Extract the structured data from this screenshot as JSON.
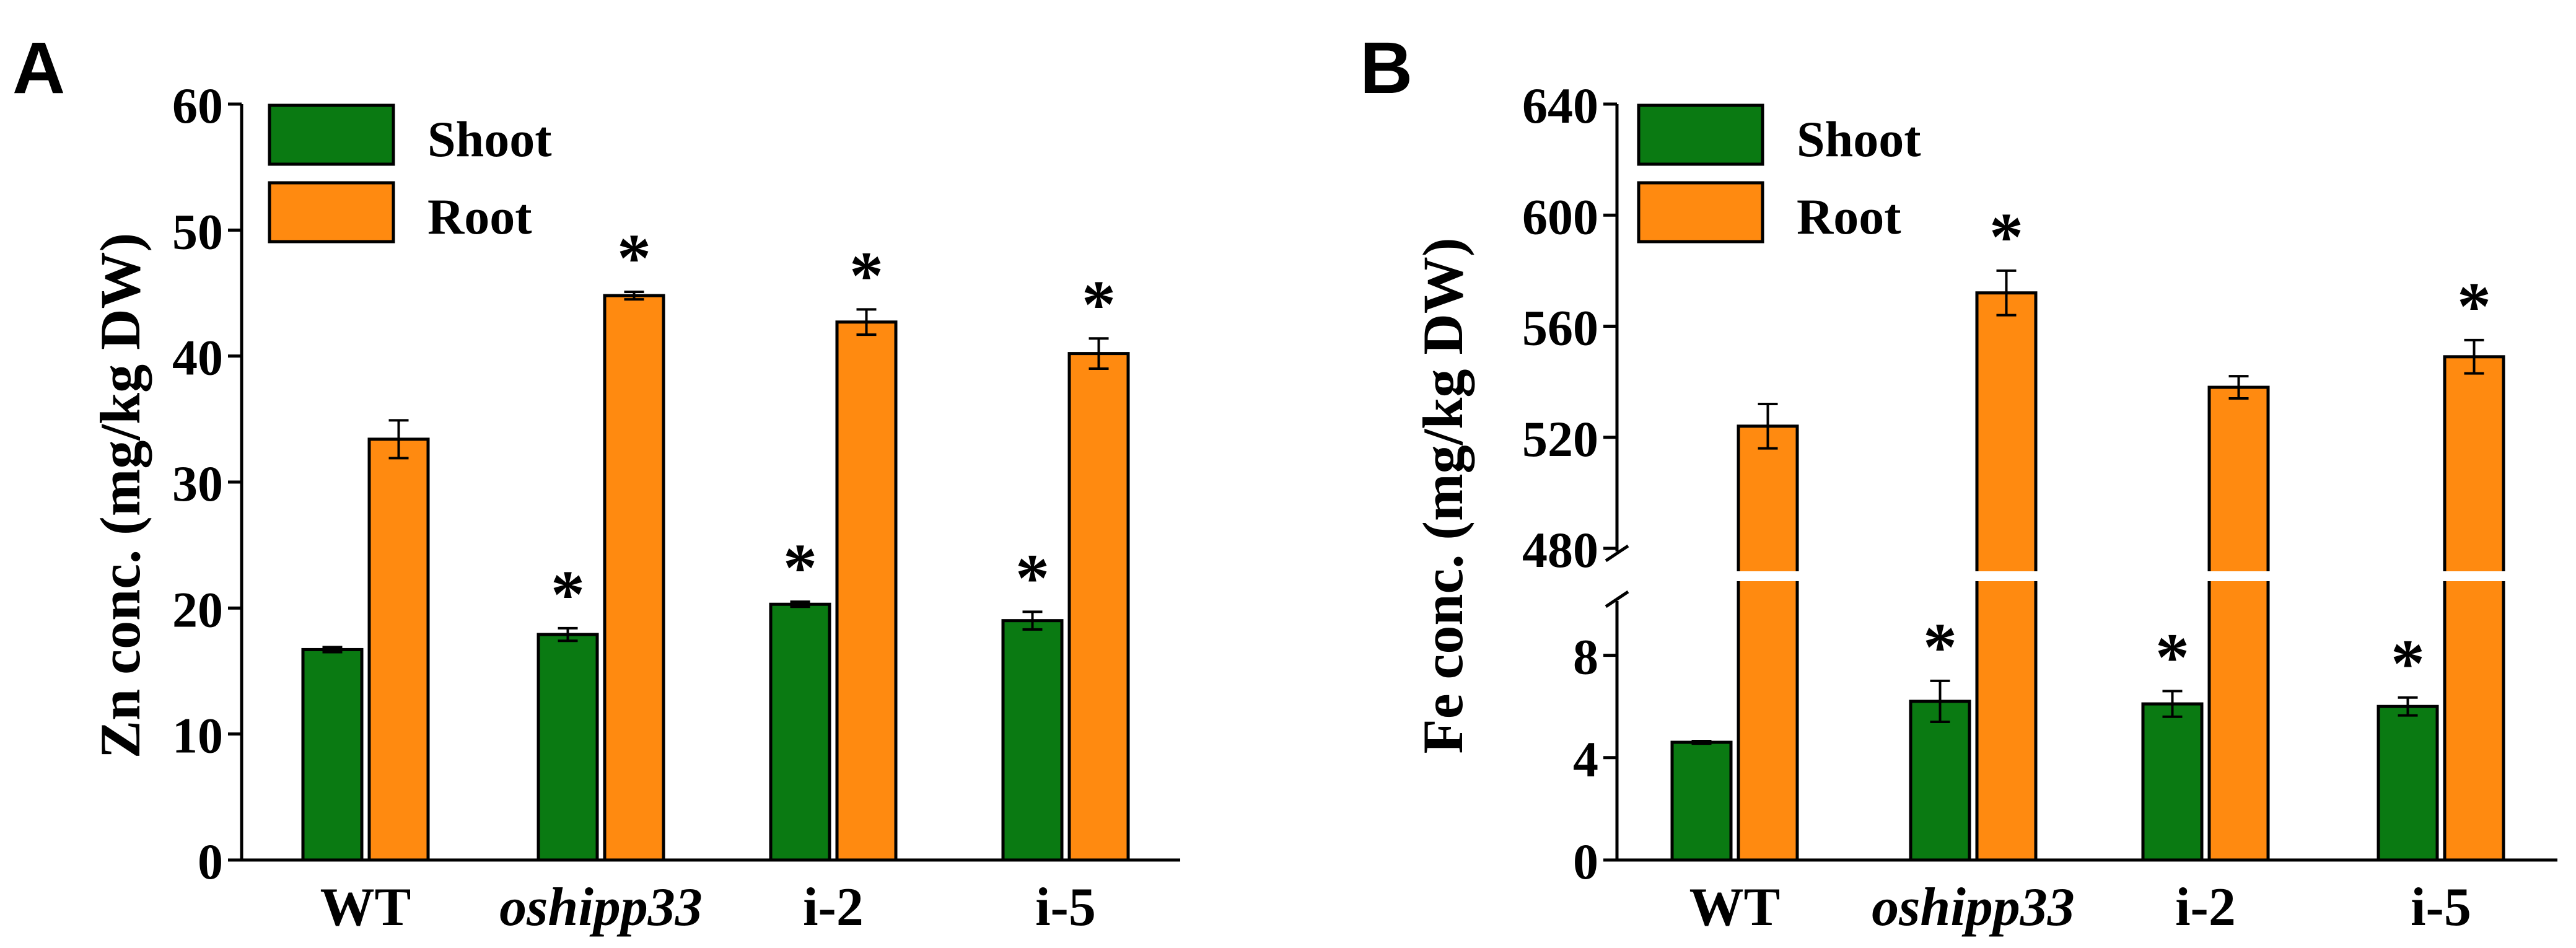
{
  "colors": {
    "shoot": "#0a7a12",
    "root": "#ff8a10",
    "axis": "#000000",
    "background": "#ffffff"
  },
  "chart_data": [
    {
      "panel_label": "A",
      "type": "bar",
      "ylabel": "Zn conc. (mg/kg DW)",
      "xlabel": "",
      "categories": [
        "WT",
        "oshipp33",
        "i-2",
        "i-5"
      ],
      "italic_categories": [
        "oshipp33"
      ],
      "ylim": [
        0,
        60
      ],
      "yticks": [
        0,
        10,
        20,
        30,
        40,
        50,
        60
      ],
      "ytick_labels": [
        "0",
        "10",
        "20",
        "30",
        "40",
        "50",
        "60"
      ],
      "legend": [
        "Shoot",
        "Root"
      ],
      "legend_position": "top-left",
      "significance_marker": "*",
      "series": [
        {
          "name": "Shoot",
          "values": [
            16.7,
            17.9,
            20.3,
            19.0
          ],
          "errors": [
            0.2,
            0.5,
            0.2,
            0.7
          ],
          "significant": [
            false,
            true,
            true,
            true
          ]
        },
        {
          "name": "Root",
          "values": [
            33.4,
            44.8,
            42.7,
            40.2
          ],
          "errors": [
            1.5,
            0.3,
            1.0,
            1.2
          ],
          "significant": [
            false,
            true,
            true,
            true
          ]
        }
      ]
    },
    {
      "panel_label": "B",
      "type": "bar",
      "ylabel": "Fe conc. (mg/kg DW)",
      "xlabel": "",
      "categories": [
        "WT",
        "oshipp33",
        "i-2",
        "i-5"
      ],
      "italic_categories": [
        "oshipp33"
      ],
      "broken_axis": {
        "lower_range": [
          0,
          10
        ],
        "upper_range": [
          480,
          640
        ]
      },
      "yticks": [
        0,
        4,
        8,
        480,
        520,
        560,
        600,
        640
      ],
      "ytick_labels": [
        "0",
        "4",
        "8",
        "480",
        "520",
        "560",
        "600",
        "640"
      ],
      "legend": [
        "Shoot",
        "Root"
      ],
      "legend_position": "top-left",
      "significance_marker": "*",
      "series": [
        {
          "name": "Shoot",
          "values": [
            4.6,
            6.2,
            6.1,
            6.0
          ],
          "errors": [
            0.05,
            0.8,
            0.5,
            0.35
          ],
          "significant": [
            false,
            true,
            true,
            true
          ]
        },
        {
          "name": "Root",
          "values": [
            524,
            572,
            538,
            549
          ],
          "errors": [
            8,
            8,
            4,
            6
          ],
          "significant": [
            false,
            true,
            false,
            true
          ]
        }
      ]
    }
  ]
}
